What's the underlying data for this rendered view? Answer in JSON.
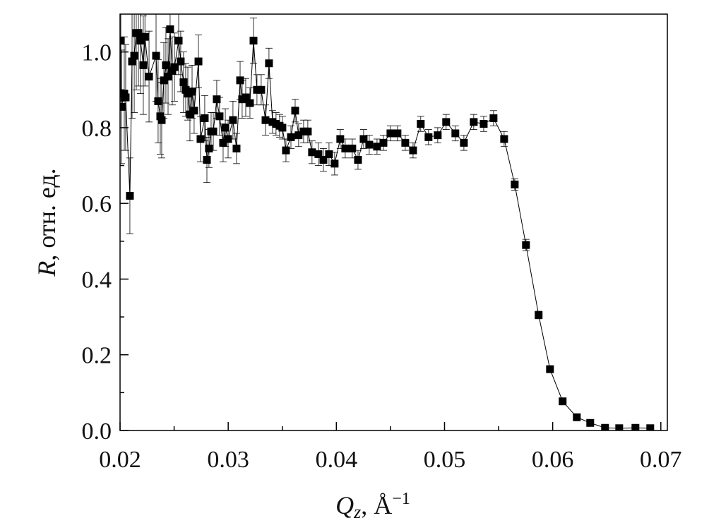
{
  "chart_data": {
    "type": "scatter",
    "xlabel": [
      "Q",
      "z",
      ", Å",
      "−1"
    ],
    "ylabel": [
      "R",
      ", отн. ед."
    ],
    "xlim": [
      0.02,
      0.0706
    ],
    "ylim": [
      0,
      1.1
    ],
    "xticks": [
      0.02,
      0.03,
      0.04,
      0.05,
      0.06,
      0.07
    ],
    "xminorticks": [
      0.025,
      0.035,
      0.045,
      0.055,
      0.065
    ],
    "yticks": [
      {
        "value": 0,
        "label": "0.0"
      },
      0.2,
      0.4,
      0.6,
      0.8,
      {
        "value": 1,
        "label": "1.0"
      }
    ],
    "yminorticks": [
      0.1,
      0.3,
      0.5,
      0.7,
      0.9
    ],
    "series": [
      {
        "color": "#000000",
        "x": [
          0.02007,
          0.02013,
          0.02039,
          0.02052,
          0.02091,
          0.02111,
          0.02131,
          0.0215,
          0.0217,
          0.02189,
          0.02215,
          0.0223,
          0.02268,
          0.02333,
          0.02352,
          0.02372,
          0.02385,
          0.02405,
          0.02424,
          0.02444,
          0.02463,
          0.02483,
          0.02503,
          0.02542,
          0.02561,
          0.02587,
          0.02607,
          0.02627,
          0.02646,
          0.02666,
          0.02685,
          0.02725,
          0.02744,
          0.02783,
          0.02803,
          0.02822,
          0.02842,
          0.02862,
          0.02894,
          0.0292,
          0.02953,
          0.02973,
          0.02999,
          0.03044,
          0.03077,
          0.0311,
          0.03129,
          0.03162,
          0.03201,
          0.03234,
          0.03266,
          0.03305,
          0.03345,
          0.03377,
          0.0341,
          0.03442,
          0.03475,
          0.03501,
          0.03534,
          0.0358,
          0.03619,
          0.03651,
          0.03697,
          0.03736,
          0.03775,
          0.03834,
          0.0388,
          0.03932,
          0.03984,
          0.04036,
          0.04082,
          0.04147,
          0.042,
          0.04252,
          0.04304,
          0.04376,
          0.04435,
          0.045,
          0.04565,
          0.04637,
          0.04709,
          0.0478,
          0.04852,
          0.04937,
          0.05015,
          0.051,
          0.05179,
          0.0527,
          0.05362,
          0.05453,
          0.05551,
          0.05649,
          0.05753,
          0.0587,
          0.05975,
          0.06092,
          0.06223,
          0.06347,
          0.06484,
          0.06615,
          0.06765,
          0.06902
        ],
        "values": [
          1.03,
          0.855,
          0.89,
          0.88,
          0.62,
          0.975,
          0.99,
          1.05,
          1.05,
          1.03,
          0.965,
          1.04,
          0.935,
          0.99,
          0.87,
          0.83,
          0.82,
          0.925,
          0.965,
          0.935,
          1.06,
          0.95,
          0.96,
          1.03,
          0.975,
          0.92,
          0.9,
          0.89,
          0.835,
          0.895,
          0.845,
          0.975,
          0.77,
          0.825,
          0.715,
          0.745,
          0.79,
          0.79,
          0.875,
          0.83,
          0.76,
          0.8,
          0.77,
          0.82,
          0.745,
          0.925,
          0.875,
          0.88,
          0.865,
          1.03,
          0.9,
          0.9,
          0.82,
          0.97,
          0.815,
          0.81,
          0.805,
          0.8,
          0.74,
          0.775,
          0.845,
          0.78,
          0.79,
          0.79,
          0.735,
          0.73,
          0.715,
          0.73,
          0.705,
          0.77,
          0.745,
          0.745,
          0.715,
          0.77,
          0.755,
          0.75,
          0.76,
          0.785,
          0.785,
          0.76,
          0.74,
          0.81,
          0.775,
          0.78,
          0.815,
          0.785,
          0.76,
          0.815,
          0.81,
          0.825,
          0.77,
          0.65,
          0.49,
          0.305,
          0.162,
          0.077,
          0.035,
          0.02,
          0.007,
          0.006,
          0.007,
          0.006
        ],
        "errors": [
          0.16,
          0.15,
          0.15,
          0.14,
          0.1,
          0.15,
          0.15,
          0.15,
          0.14,
          0.14,
          0.13,
          0.13,
          0.12,
          0.12,
          0.11,
          0.1,
          0.1,
          0.1,
          0.1,
          0.1,
          0.1,
          0.09,
          0.09,
          0.09,
          0.08,
          0.08,
          0.07,
          0.07,
          0.07,
          0.07,
          0.06,
          0.07,
          0.06,
          0.06,
          0.06,
          0.05,
          0.05,
          0.05,
          0.05,
          0.05,
          0.05,
          0.05,
          0.05,
          0.05,
          0.04,
          0.05,
          0.05,
          0.05,
          0.04,
          0.06,
          0.04,
          0.04,
          0.04,
          0.04,
          0.03,
          0.03,
          0.03,
          0.03,
          0.03,
          0.03,
          0.03,
          0.03,
          0.03,
          0.03,
          0.03,
          0.03,
          0.03,
          0.03,
          0.03,
          0.025,
          0.025,
          0.025,
          0.025,
          0.025,
          0.025,
          0.02,
          0.02,
          0.02,
          0.02,
          0.02,
          0.02,
          0.02,
          0.02,
          0.02,
          0.02,
          0.02,
          0.02,
          0.02,
          0.02,
          0.02,
          0.02,
          0.015,
          0.015,
          0.01,
          0.008,
          0.006,
          0.004,
          0.003,
          0.002,
          0.002,
          0.002,
          0.002
        ]
      }
    ]
  }
}
